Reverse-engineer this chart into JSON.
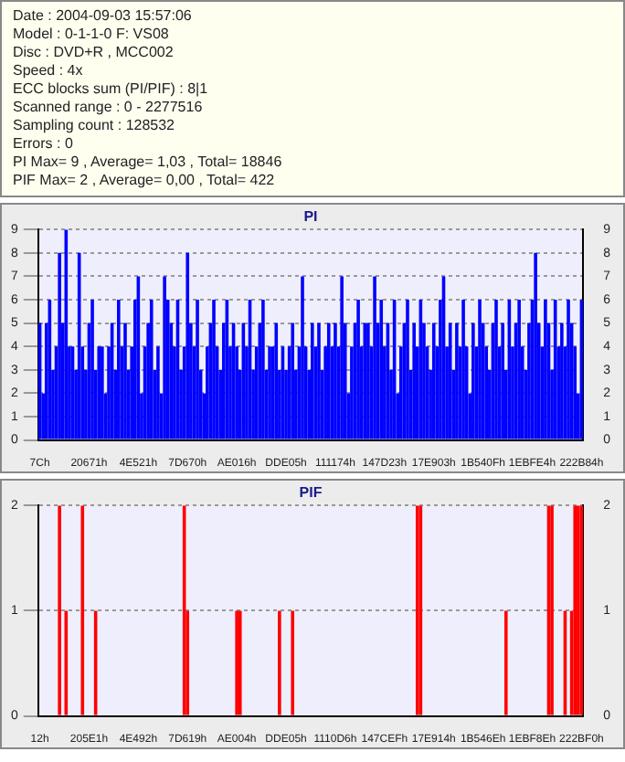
{
  "chart_data": [
    {
      "type": "other",
      "annotations": [
        "Date : 2004-09-03 15:57:06",
        "Model : 0-1-1-0 F: VS08",
        "Disc : DVD+R , MCC002",
        "Speed : 4x",
        "ECC blocks sum (PI/PIF) : 8|1",
        "Scanned range : 0 - 2277516",
        "Sampling count : 128532",
        "Errors : 0",
        "PI Max= 9 , Average= 1,03 , Total= 18846",
        "PIF Max= 2 , Average= 0,00 , Total= 422"
      ]
    },
    {
      "type": "bar",
      "title": "PI",
      "color": "#0000ff",
      "grid": "y",
      "ylim": [
        0,
        9
      ],
      "yticks": [
        0,
        1,
        2,
        3,
        4,
        5,
        6,
        7,
        8,
        9
      ],
      "y2lim": [
        0,
        9
      ],
      "y2ticks": [
        0,
        1,
        2,
        3,
        4,
        5,
        6,
        7,
        8,
        9
      ],
      "categories": [
        "7Ch",
        null,
        null,
        null,
        null,
        null,
        null,
        null,
        null,
        null,
        null,
        null,
        null,
        null,
        null,
        "20671h",
        null,
        null,
        null,
        null,
        null,
        null,
        null,
        null,
        null,
        null,
        null,
        null,
        null,
        null,
        "4E521h",
        null,
        null,
        null,
        null,
        null,
        null,
        null,
        null,
        null,
        null,
        null,
        null,
        null,
        null,
        "7D670h",
        null,
        null,
        null,
        null,
        null,
        null,
        null,
        null,
        null,
        null,
        null,
        null,
        null,
        null,
        "AE016h",
        null,
        null,
        null,
        null,
        null,
        null,
        null,
        null,
        null,
        null,
        null,
        null,
        null,
        null,
        "DDE05h",
        null,
        null,
        null,
        null,
        null,
        null,
        null,
        null,
        null,
        null,
        null,
        null,
        null,
        null,
        "111174h",
        null,
        null,
        null,
        null,
        null,
        null,
        null,
        null,
        null,
        null,
        null,
        null,
        null,
        null,
        "147D23h",
        null,
        null,
        null,
        null,
        null,
        null,
        null,
        null,
        null,
        null,
        null,
        null,
        null,
        null,
        "17E903h",
        null,
        null,
        null,
        null,
        null,
        null,
        null,
        null,
        null,
        null,
        null,
        null,
        null,
        null,
        "1B540Fh",
        null,
        null,
        null,
        null,
        null,
        null,
        null,
        null,
        null,
        null,
        null,
        null,
        null,
        null,
        "1EBFE4h",
        null,
        null,
        null,
        null,
        null,
        null,
        null,
        null,
        null,
        null,
        null,
        null,
        null,
        null,
        "222B84h"
      ],
      "values": [
        5,
        2,
        5,
        6,
        3,
        4,
        8,
        5,
        9,
        4,
        4,
        3,
        8,
        4,
        3,
        5,
        6,
        3,
        4,
        4,
        2,
        4,
        5,
        3,
        6,
        4,
        5,
        3,
        4,
        6,
        7,
        2,
        4,
        5,
        6,
        3,
        4,
        2,
        7,
        6,
        5,
        4,
        6,
        3,
        4,
        8,
        5,
        4,
        6,
        3,
        2,
        4,
        5,
        6,
        4,
        3,
        5,
        6,
        4,
        5,
        4,
        3,
        5,
        4,
        6,
        3,
        4,
        5,
        6,
        3,
        4,
        4,
        5,
        3,
        4,
        3,
        4,
        5,
        3,
        4,
        7,
        4,
        3,
        5,
        4,
        5,
        3,
        4,
        5,
        4,
        5,
        4,
        7,
        5,
        2,
        4,
        5,
        6,
        4,
        5,
        5,
        4,
        7,
        5,
        6,
        4,
        5,
        3,
        6,
        2,
        4,
        5,
        6,
        3,
        5,
        4,
        6,
        5,
        4,
        3,
        5,
        4,
        6,
        7,
        4,
        5,
        3,
        5,
        4,
        6,
        4,
        2,
        5,
        4,
        6,
        5,
        4,
        3,
        5,
        6,
        4,
        5,
        3,
        6,
        4,
        5,
        6,
        4,
        3,
        5,
        6,
        8,
        5,
        4,
        6,
        5,
        3,
        6,
        4,
        5,
        4,
        6,
        5,
        4,
        2,
        6
      ]
    },
    {
      "type": "bar",
      "title": "PIF",
      "color": "#ff0000",
      "grid": "y",
      "ylim": [
        0,
        2
      ],
      "yticks": [
        0,
        1,
        2
      ],
      "y2lim": [
        0,
        2
      ],
      "y2ticks": [
        0,
        1,
        2
      ],
      "categories": [
        "12h",
        null,
        null,
        null,
        null,
        null,
        null,
        null,
        null,
        null,
        null,
        null,
        null,
        null,
        null,
        "205E1h",
        null,
        null,
        null,
        null,
        null,
        null,
        null,
        null,
        null,
        null,
        null,
        null,
        null,
        null,
        "4E492h",
        null,
        null,
        null,
        null,
        null,
        null,
        null,
        null,
        null,
        null,
        null,
        null,
        null,
        null,
        "7D619h",
        null,
        null,
        null,
        null,
        null,
        null,
        null,
        null,
        null,
        null,
        null,
        null,
        null,
        null,
        "AE004h",
        null,
        null,
        null,
        null,
        null,
        null,
        null,
        null,
        null,
        null,
        null,
        null,
        null,
        null,
        "DDE05h",
        null,
        null,
        null,
        null,
        null,
        null,
        null,
        null,
        null,
        null,
        null,
        null,
        null,
        null,
        "1110D6h",
        null,
        null,
        null,
        null,
        null,
        null,
        null,
        null,
        null,
        null,
        null,
        null,
        null,
        null,
        "147CEFh",
        null,
        null,
        null,
        null,
        null,
        null,
        null,
        null,
        null,
        null,
        null,
        null,
        null,
        null,
        "17E914h",
        null,
        null,
        null,
        null,
        null,
        null,
        null,
        null,
        null,
        null,
        null,
        null,
        null,
        null,
        "1B546Eh",
        null,
        null,
        null,
        null,
        null,
        null,
        null,
        null,
        null,
        null,
        null,
        null,
        null,
        null,
        "1EBF8Eh",
        null,
        null,
        null,
        null,
        null,
        null,
        null,
        null,
        null,
        null,
        null,
        null,
        null,
        null,
        "222BF0h"
      ],
      "values": [
        0,
        0,
        0,
        0,
        0,
        0,
        2,
        0,
        1,
        0,
        0,
        0,
        0,
        2,
        0,
        0,
        0,
        1,
        0,
        0,
        0,
        0,
        0,
        0,
        0,
        0,
        0,
        0,
        0,
        0,
        0,
        0,
        0,
        0,
        0,
        0,
        0,
        0,
        0,
        0,
        0,
        0,
        0,
        0,
        2,
        1,
        0,
        0,
        0,
        0,
        0,
        0,
        0,
        0,
        0,
        0,
        0,
        0,
        0,
        0,
        1,
        1,
        0,
        0,
        0,
        0,
        0,
        0,
        0,
        0,
        0,
        0,
        0,
        1,
        0,
        0,
        0,
        1,
        0,
        0,
        0,
        0,
        0,
        0,
        0,
        0,
        0,
        0,
        0,
        0,
        0,
        0,
        0,
        0,
        0,
        0,
        0,
        0,
        0,
        0,
        0,
        0,
        0,
        0,
        0,
        0,
        0,
        0,
        0,
        0,
        0,
        0,
        0,
        0,
        0,
        2,
        2,
        0,
        0,
        0,
        0,
        0,
        0,
        0,
        0,
        0,
        0,
        0,
        0,
        0,
        0,
        0,
        0,
        0,
        0,
        0,
        0,
        0,
        0,
        0,
        0,
        0,
        1,
        0,
        0,
        0,
        0,
        0,
        0,
        0,
        0,
        0,
        0,
        0,
        0,
        2,
        2,
        0,
        0,
        0,
        1,
        0,
        1,
        2,
        2,
        2
      ]
    }
  ]
}
